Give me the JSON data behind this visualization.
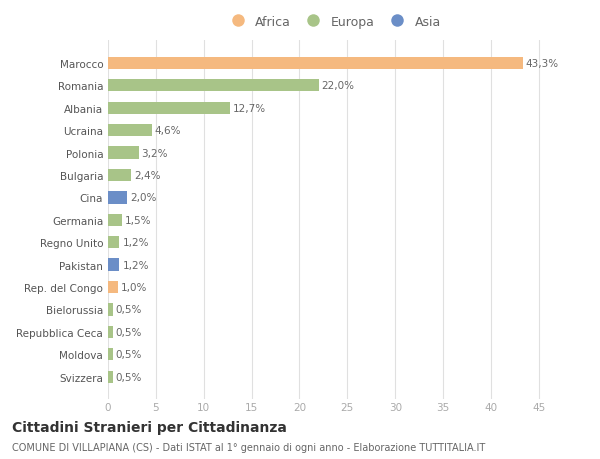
{
  "categories": [
    "Marocco",
    "Romania",
    "Albania",
    "Ucraina",
    "Polonia",
    "Bulgaria",
    "Cina",
    "Germania",
    "Regno Unito",
    "Pakistan",
    "Rep. del Congo",
    "Bielorussia",
    "Repubblica Ceca",
    "Moldova",
    "Svizzera"
  ],
  "values": [
    43.3,
    22.0,
    12.7,
    4.6,
    3.2,
    2.4,
    2.0,
    1.5,
    1.2,
    1.2,
    1.0,
    0.5,
    0.5,
    0.5,
    0.5
  ],
  "labels": [
    "43,3%",
    "22,0%",
    "12,7%",
    "4,6%",
    "3,2%",
    "2,4%",
    "2,0%",
    "1,5%",
    "1,2%",
    "1,2%",
    "1,0%",
    "0,5%",
    "0,5%",
    "0,5%",
    "0,5%"
  ],
  "continents": [
    "Africa",
    "Europa",
    "Europa",
    "Europa",
    "Europa",
    "Europa",
    "Asia",
    "Europa",
    "Europa",
    "Asia",
    "Africa",
    "Europa",
    "Europa",
    "Europa",
    "Europa"
  ],
  "colors": {
    "Africa": "#F5B97F",
    "Europa": "#A8C488",
    "Asia": "#6B8EC7"
  },
  "xlim": [
    0,
    47
  ],
  "xticks": [
    0,
    5,
    10,
    15,
    20,
    25,
    30,
    35,
    40,
    45
  ],
  "title": "Cittadini Stranieri per Cittadinanza",
  "subtitle": "COMUNE DI VILLAPIANA (CS) - Dati ISTAT al 1° gennaio di ogni anno - Elaborazione TUTTITALIA.IT",
  "bg_color": "#ffffff",
  "grid_color": "#e0e0e0",
  "bar_height": 0.55,
  "label_fontsize": 7.5,
  "tick_fontsize": 7.5,
  "title_fontsize": 10,
  "subtitle_fontsize": 7,
  "legend_order": [
    "Africa",
    "Europa",
    "Asia"
  ]
}
